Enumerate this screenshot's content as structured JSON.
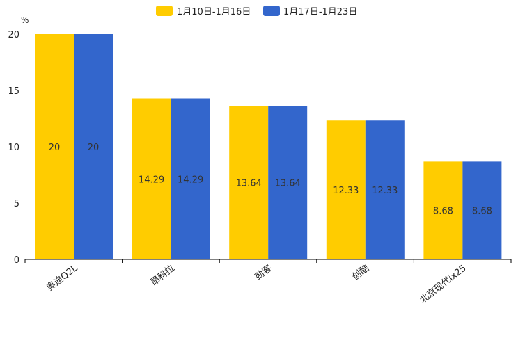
{
  "chart_data": {
    "type": "bar",
    "title": "",
    "xlabel": "",
    "ylabel": "%",
    "ylim": [
      0,
      20
    ],
    "yticks": [
      0,
      5,
      10,
      15,
      20
    ],
    "grid": false,
    "legend_position": "top-center",
    "categories": [
      "奥迪Q2L",
      "昂科拉",
      "劲客",
      "创酷",
      "北京现代ix25"
    ],
    "series": [
      {
        "name": "1月10日-1月16日",
        "color": "#FFCC00",
        "values": [
          20,
          14.29,
          13.64,
          12.33,
          8.68
        ],
        "labels": [
          "20",
          "14.29",
          "13.64",
          "12.33",
          "8.68"
        ]
      },
      {
        "name": "1月17日-1月23日",
        "color": "#3366CC",
        "values": [
          20,
          14.29,
          13.64,
          12.33,
          8.68
        ],
        "labels": [
          "20",
          "14.29",
          "13.64",
          "12.33",
          "8.68"
        ]
      }
    ]
  }
}
